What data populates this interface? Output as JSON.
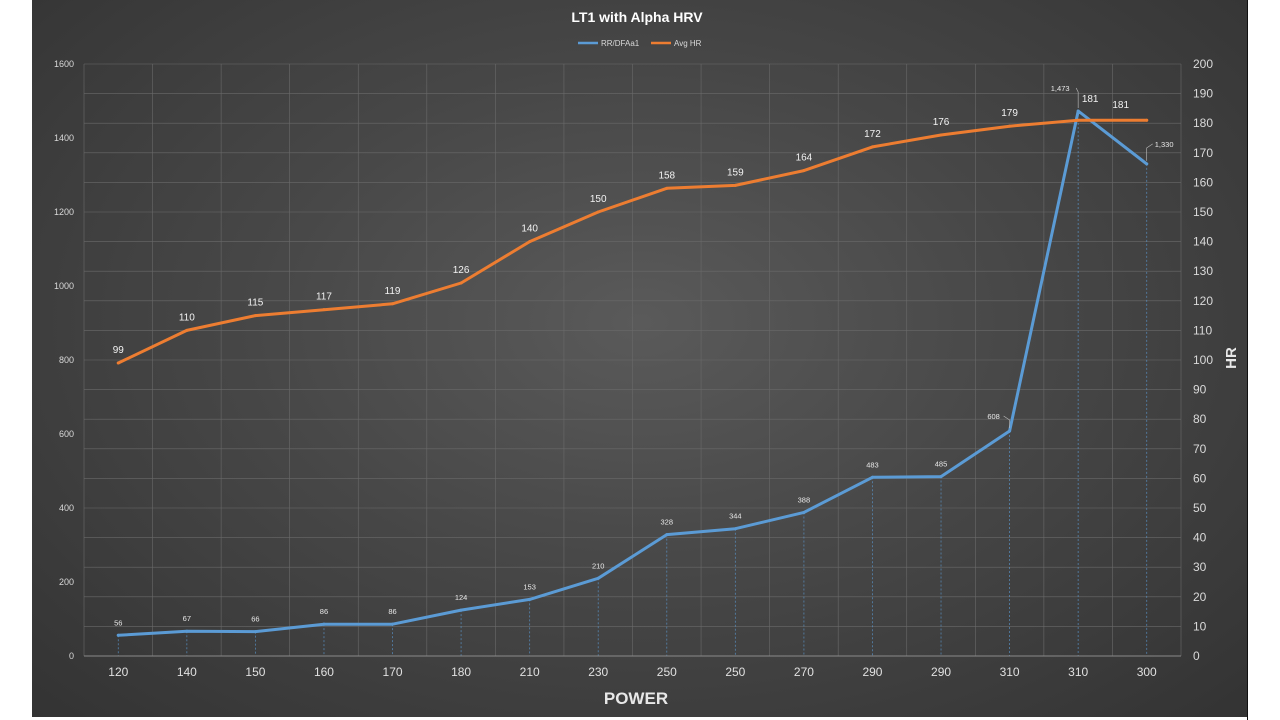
{
  "chart_data": {
    "type": "line",
    "title": "LT1 with Alpha HRV",
    "xlabel": "POWER",
    "ylabel_left": "",
    "ylabel_right": "HR",
    "categories": [
      "120",
      "140",
      "150",
      "160",
      "170",
      "180",
      "210",
      "230",
      "250",
      "250",
      "270",
      "290",
      "290",
      "310",
      "310",
      "300"
    ],
    "y_left_lim": [
      0,
      1600
    ],
    "y_left_ticks": [
      0,
      200,
      400,
      600,
      800,
      1000,
      1200,
      1400,
      1600
    ],
    "y_right_lim": [
      0,
      200
    ],
    "y_right_ticks": [
      0,
      10,
      20,
      30,
      40,
      50,
      60,
      70,
      80,
      90,
      100,
      110,
      120,
      130,
      140,
      150,
      160,
      170,
      180,
      190,
      200
    ],
    "grid": true,
    "legend_position": "top",
    "series": [
      {
        "name": "RR/DFAa1",
        "axis": "left",
        "color": "#5b9bd5",
        "values": [
          56,
          67,
          66,
          86,
          86,
          124,
          153,
          210,
          328,
          344,
          388,
          483,
          485,
          608,
          1473,
          1330
        ],
        "labels": [
          "56",
          "67",
          "66",
          "86",
          "86",
          "124",
          "153",
          "210",
          "328",
          "344",
          "388",
          "483",
          "485",
          "608",
          "1,473",
          "1,330"
        ]
      },
      {
        "name": "Avg HR",
        "axis": "right",
        "color": "#ed7d31",
        "values": [
          99,
          110,
          115,
          117,
          119,
          126,
          140,
          150,
          158,
          159,
          164,
          172,
          176,
          179,
          181,
          181
        ],
        "labels": [
          "99",
          "110",
          "115",
          "117",
          "119",
          "126",
          "140",
          "150",
          "158",
          "159",
          "164",
          "172",
          "176",
          "179",
          "181",
          "181"
        ]
      }
    ]
  }
}
